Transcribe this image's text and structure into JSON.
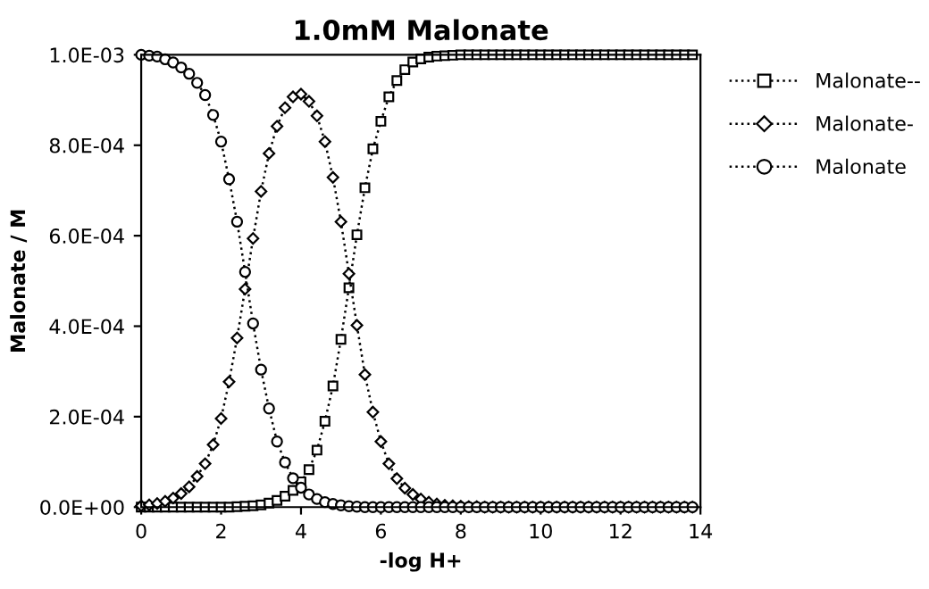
{
  "chart_data": {
    "type": "line",
    "title": "1.0mM Malonate",
    "xlabel": "-log H+",
    "ylabel": "Malonate / M",
    "x": [
      0,
      0.2,
      0.4,
      0.6,
      0.8,
      1.0,
      1.2,
      1.4,
      1.6,
      1.8,
      2.0,
      2.2,
      2.4,
      2.6,
      2.8,
      3.0,
      3.2,
      3.4,
      3.6,
      3.8,
      4.0,
      4.2,
      4.4,
      4.6,
      4.8,
      5.0,
      5.2,
      5.4,
      5.6,
      5.8,
      6.0,
      6.2,
      6.4,
      6.6,
      6.8,
      7.0,
      7.2,
      7.4,
      7.6,
      7.8,
      8.0,
      8.2,
      8.4,
      8.6,
      8.8,
      9.0,
      9.2,
      9.4,
      9.6,
      9.8,
      10.0,
      10.2,
      10.4,
      10.6,
      10.8,
      11.0,
      11.2,
      11.4,
      11.6,
      11.8,
      12.0,
      12.2,
      12.4,
      12.6,
      12.8,
      13.0,
      13.2,
      13.4,
      13.6,
      13.8
    ],
    "series": [
      {
        "name": "Malonate--",
        "color": "#000000",
        "marker": "square",
        "values": [
          0,
          0,
          0,
          0,
          0,
          0,
          0,
          0,
          0,
          0,
          0,
          0,
          1e-06,
          2e-06,
          3e-06,
          5e-06,
          9e-06,
          1.5e-05,
          2.4e-05,
          3.7e-05,
          5.6e-05,
          8.3e-05,
          0.000126,
          0.00019,
          0.000268,
          0.000371,
          0.000485,
          0.000602,
          0.000706,
          0.000792,
          0.000853,
          0.000907,
          0.000943,
          0.000967,
          0.000984,
          0.000991,
          0.000995,
          0.000997,
          0.000998,
          0.000999,
          0.001,
          0.001,
          0.001,
          0.001,
          0.001,
          0.001,
          0.001,
          0.001,
          0.001,
          0.001,
          0.001,
          0.001,
          0.001,
          0.001,
          0.001,
          0.001,
          0.001,
          0.001,
          0.001,
          0.001,
          0.001,
          0.001,
          0.001,
          0.001,
          0.001,
          0.001,
          0.001,
          0.001,
          0.001,
          0.001
        ]
      },
      {
        "name": "Malonate-",
        "color": "#000000",
        "marker": "diamond",
        "values": [
          3e-06,
          5e-06,
          8e-06,
          1.3e-05,
          2e-05,
          3e-05,
          4.5e-05,
          6.8e-05,
          9.6e-05,
          0.000138,
          0.000196,
          0.000277,
          0.000374,
          0.000482,
          0.000594,
          0.000698,
          0.000782,
          0.000842,
          0.000883,
          0.000907,
          0.000913,
          0.000897,
          0.000865,
          0.000808,
          0.000729,
          0.000631,
          0.000516,
          0.000402,
          0.000293,
          0.00021,
          0.000145,
          9.6e-05,
          6.3e-05,
          4.2e-05,
          2.8e-05,
          1.8e-05,
          1.1e-05,
          7e-06,
          4e-06,
          3e-06,
          2e-06,
          1e-06,
          1e-06,
          0,
          0,
          0,
          0,
          0,
          0,
          0,
          0,
          0,
          0,
          0,
          0,
          0,
          0,
          0,
          0,
          0,
          0,
          0,
          0,
          0,
          0,
          0,
          0,
          0,
          0,
          0
        ]
      },
      {
        "name": "Malonate",
        "color": "#000000",
        "marker": "circle",
        "values": [
          0.001,
          0.000998,
          0.000996,
          0.00099,
          0.000983,
          0.000972,
          0.000958,
          0.000938,
          0.000911,
          0.000867,
          0.000808,
          0.000725,
          0.000631,
          0.00052,
          0.000406,
          0.000304,
          0.000218,
          0.000145,
          9.9e-05,
          6.4e-05,
          4.3e-05,
          2.8e-05,
          1.8e-05,
          1.1e-05,
          7e-06,
          4e-06,
          2e-06,
          1e-06,
          0,
          0,
          0,
          0,
          0,
          0,
          0,
          0,
          0,
          0,
          0,
          0,
          0,
          0,
          0,
          0,
          0,
          0,
          0,
          0,
          0,
          0,
          0,
          0,
          0,
          0,
          0,
          0,
          0,
          0,
          0,
          0,
          0,
          0,
          0,
          0,
          0,
          0,
          0,
          0,
          0,
          0
        ]
      }
    ],
    "xlim": [
      0,
      14
    ],
    "xticks": [
      0,
      2,
      4,
      6,
      8,
      10,
      12,
      14
    ],
    "ylim": [
      0,
      0.001
    ],
    "yticks": [
      {
        "value": 0,
        "label": "0.0E+00"
      },
      {
        "value": 0.0002,
        "label": "2.0E-04"
      },
      {
        "value": 0.0004,
        "label": "4.0E-04"
      },
      {
        "value": 0.0006,
        "label": "6.0E-04"
      },
      {
        "value": 0.0008,
        "label": "8.0E-04"
      },
      {
        "value": 0.001,
        "label": "1.0E-03"
      }
    ],
    "line_style": "dotted",
    "legend": "right",
    "grid": false
  }
}
